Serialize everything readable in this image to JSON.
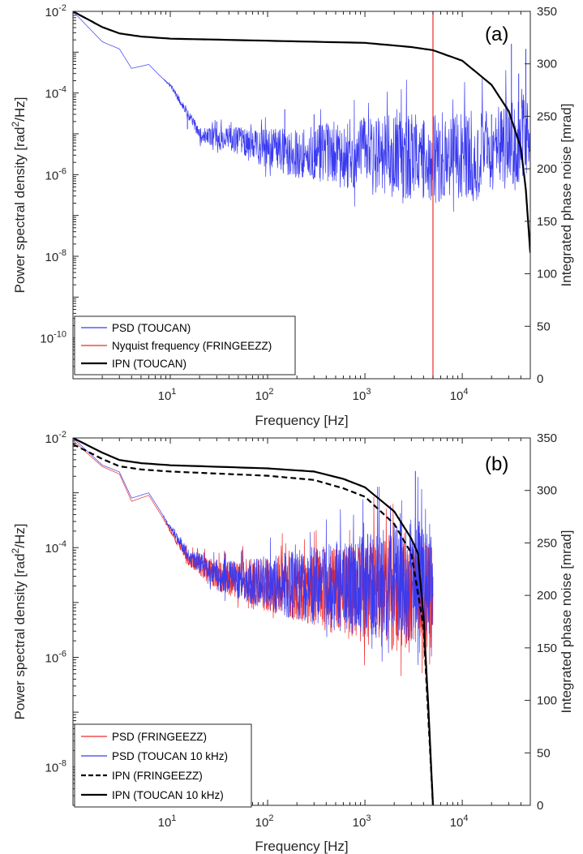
{
  "chart_data": [
    {
      "type": "line",
      "panel_label": "(a)",
      "xlabel": "Frequency [Hz]",
      "ylabel_left": "Power spectral density [rad",
      "ylabel_left_sup": "2",
      "ylabel_left_end": "/Hz]",
      "ylabel_right": "Integrated phase noise [mrad]",
      "xscale": "log",
      "xlim": [
        1,
        50000
      ],
      "x_ticks": [
        10,
        100,
        1000,
        10000
      ],
      "x_tick_labels": [
        {
          "base": "10",
          "exp": "1"
        },
        {
          "base": "10",
          "exp": "2"
        },
        {
          "base": "10",
          "exp": "3"
        },
        {
          "base": "10",
          "exp": "4"
        }
      ],
      "yscale_left": "log",
      "ylim_left": [
        1e-11,
        0.01
      ],
      "y_left_ticks": [
        1e-10,
        1e-08,
        1e-06,
        0.0001,
        0.01
      ],
      "y_left_tick_labels": [
        {
          "base": "10",
          "exp": "-10"
        },
        {
          "base": "10",
          "exp": "-8"
        },
        {
          "base": "10",
          "exp": "-6"
        },
        {
          "base": "10",
          "exp": "-4"
        },
        {
          "base": "10",
          "exp": "-2"
        }
      ],
      "ylim_right": [
        0,
        350
      ],
      "y_right_ticks": [
        0,
        50,
        100,
        150,
        200,
        250,
        300,
        350
      ],
      "y_right_tick_labels": [
        "0",
        "50",
        "100",
        "150",
        "200",
        "250",
        "300",
        "350"
      ],
      "legend_position": "bottom-left",
      "series": [
        {
          "name": "PSD (TOUCAN)",
          "color": "#3a3af0",
          "style": "solid",
          "axis": "left",
          "kind": "noisy",
          "x_end": 50000,
          "points": [
            [
              1,
              0.01
            ],
            [
              2,
              0.0018
            ],
            [
              3,
              0.0012
            ],
            [
              4,
              0.0004
            ],
            [
              6,
              0.0005
            ],
            [
              8,
              0.00025
            ],
            [
              10,
              0.00015
            ],
            [
              15,
              3e-05
            ],
            [
              20,
              8e-06
            ],
            [
              50,
              5e-06
            ],
            [
              100,
              3e-06
            ],
            [
              300,
              2e-06
            ],
            [
              1000,
              1.5e-06
            ],
            [
              5000,
              1.2e-06
            ],
            [
              20000,
              1.5e-06
            ],
            [
              40000,
              4e-06
            ],
            [
              50000,
              5e-06
            ]
          ],
          "spikes": [
            [
              15,
              1.3e-05
            ],
            [
              30,
              2e-05
            ],
            [
              60,
              1e-05
            ],
            [
              150,
              4e-05
            ],
            [
              300,
              3e-05
            ],
            [
              1000,
              2e-05
            ],
            [
              20000,
              3e-05
            ],
            [
              25000,
              3.5e-05
            ],
            [
              30000,
              2.5e-05
            ],
            [
              32000,
              0.0016
            ],
            [
              38000,
              0.0003
            ],
            [
              45000,
              0.0012
            ]
          ]
        },
        {
          "name": "Nyquist frequency (FRINGEEZZ)",
          "color": "#ee2a2a",
          "style": "solid",
          "axis": "left",
          "kind": "vline",
          "x": 5000
        },
        {
          "name": "IPN (TOUCAN)",
          "color": "#000000",
          "style": "solid",
          "axis": "right",
          "kind": "line",
          "points": [
            [
              1,
              350
            ],
            [
              2,
              335
            ],
            [
              3,
              329
            ],
            [
              5,
              326
            ],
            [
              10,
              324
            ],
            [
              100,
              322
            ],
            [
              1000,
              320
            ],
            [
              3000,
              316
            ],
            [
              5000,
              313
            ],
            [
              10000,
              303
            ],
            [
              20000,
              280
            ],
            [
              30000,
              255
            ],
            [
              40000,
              220
            ],
            [
              45000,
              180
            ],
            [
              50000,
              120
            ]
          ]
        }
      ]
    },
    {
      "type": "line",
      "panel_label": "(b)",
      "xlabel": "Frequency [Hz]",
      "ylabel_left": "Power spectral density [rad",
      "ylabel_left_sup": "2",
      "ylabel_left_end": "/Hz]",
      "ylabel_right": "Integrated phase noise [mrad]",
      "xscale": "log",
      "xlim": [
        1,
        50000
      ],
      "x_ticks": [
        10,
        100,
        1000,
        10000
      ],
      "x_tick_labels": [
        {
          "base": "10",
          "exp": "1"
        },
        {
          "base": "10",
          "exp": "2"
        },
        {
          "base": "10",
          "exp": "3"
        },
        {
          "base": "10",
          "exp": "4"
        }
      ],
      "yscale_left": "log",
      "ylim_left": [
        2e-09,
        0.01
      ],
      "y_left_ticks": [
        1e-08,
        1e-06,
        0.0001,
        0.01
      ],
      "y_left_tick_labels": [
        {
          "base": "10",
          "exp": "-8"
        },
        {
          "base": "10",
          "exp": "-6"
        },
        {
          "base": "10",
          "exp": "-4"
        },
        {
          "base": "10",
          "exp": "-2"
        }
      ],
      "ylim_right": [
        0,
        350
      ],
      "y_right_ticks": [
        0,
        50,
        100,
        150,
        200,
        250,
        300,
        350
      ],
      "y_right_tick_labels": [
        "0",
        "50",
        "100",
        "150",
        "200",
        "250",
        "300",
        "350"
      ],
      "legend_position": "bottom-left",
      "series": [
        {
          "name": "PSD (FRINGEEZZ)",
          "color": "#ee2a2a",
          "style": "solid",
          "axis": "left",
          "kind": "noisy",
          "x_end": 5000,
          "points": [
            [
              1,
              0.009
            ],
            [
              2,
              0.003
            ],
            [
              3,
              0.0022
            ],
            [
              4,
              0.0007
            ],
            [
              6,
              0.0009
            ],
            [
              8,
              0.0004
            ],
            [
              10,
              0.0002
            ],
            [
              15,
              6e-05
            ],
            [
              30,
              2.5e-05
            ],
            [
              100,
              1.5e-05
            ],
            [
              1000,
              8e-06
            ],
            [
              3000,
              7e-06
            ],
            [
              4000,
              5e-06
            ],
            [
              5000,
              4e-06
            ]
          ],
          "spikes": [
            [
              30,
              6e-05
            ],
            [
              3500,
              0.0002
            ],
            [
              4500,
              0.0001
            ]
          ]
        },
        {
          "name": "PSD (TOUCAN 10 kHz)",
          "color": "#3a3af0",
          "style": "solid",
          "axis": "left",
          "kind": "noisy",
          "x_end": 5000,
          "points": [
            [
              1,
              0.01
            ],
            [
              2,
              0.0032
            ],
            [
              3,
              0.0024
            ],
            [
              4,
              0.0008
            ],
            [
              6,
              0.001
            ],
            [
              8,
              0.00045
            ],
            [
              10,
              0.00022
            ],
            [
              15,
              7e-05
            ],
            [
              30,
              2.5e-05
            ],
            [
              100,
              1.5e-05
            ],
            [
              1000,
              1e-05
            ],
            [
              3000,
              1.2e-05
            ],
            [
              4000,
              1.1e-05
            ],
            [
              5000,
              1e-05
            ]
          ],
          "spikes": [
            [
              30,
              6e-05
            ],
            [
              150,
              8e-05
            ],
            [
              300,
              0.0001
            ],
            [
              1500,
              0.00012
            ],
            [
              3300,
              0.0025
            ],
            [
              3600,
              0.0003
            ],
            [
              4200,
              0.00015
            ]
          ]
        },
        {
          "name": "IPN (FRINGEEZZ)",
          "color": "#000000",
          "style": "dashed",
          "axis": "right",
          "kind": "line",
          "points": [
            [
              1,
              344
            ],
            [
              2,
              330
            ],
            [
              3,
              323
            ],
            [
              5,
              320
            ],
            [
              10,
              318
            ],
            [
              100,
              314
            ],
            [
              300,
              310
            ],
            [
              600,
              302
            ],
            [
              1000,
              294
            ],
            [
              2000,
              268
            ],
            [
              3000,
              240
            ],
            [
              4000,
              170
            ],
            [
              4500,
              80
            ],
            [
              5000,
              0
            ]
          ]
        },
        {
          "name": "IPN (TOUCAN 10 kHz)",
          "color": "#000000",
          "style": "solid",
          "axis": "right",
          "kind": "line",
          "points": [
            [
              1,
              350
            ],
            [
              2,
              336
            ],
            [
              3,
              329
            ],
            [
              5,
              326
            ],
            [
              10,
              324
            ],
            [
              100,
              321
            ],
            [
              300,
              318
            ],
            [
              600,
              311
            ],
            [
              1000,
              303
            ],
            [
              2000,
              280
            ],
            [
              3000,
              254
            ],
            [
              3500,
              240
            ],
            [
              4000,
              180
            ],
            [
              4500,
              90
            ],
            [
              5000,
              0
            ]
          ]
        }
      ]
    }
  ]
}
